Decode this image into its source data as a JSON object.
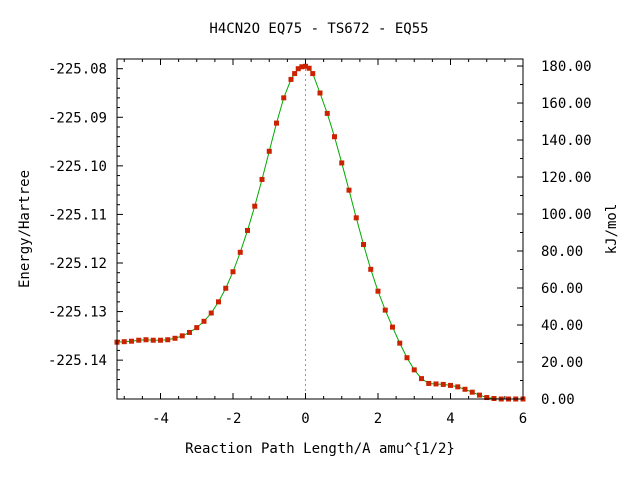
{
  "chart_data": {
    "type": "line",
    "title": "H4CN2O   EQ75 - TS672 - EQ55",
    "xlabel": "Reaction Path Length/A amu^{1/2}",
    "ylabel": "Energy/Hartree",
    "y2label": "kJ/mol",
    "xlim": [
      -5.2,
      6.0
    ],
    "ylim": [
      -225.148,
      -225.078
    ],
    "y2lim": [
      0.0,
      183.8
    ],
    "x_ticks": [
      -4,
      -2,
      0,
      2,
      4,
      6
    ],
    "x_tick_labels": [
      "-4",
      "-2",
      "0",
      "2",
      "4",
      "6"
    ],
    "y_ticks": [
      -225.08,
      -225.09,
      -225.1,
      -225.11,
      -225.12,
      -225.13,
      -225.14
    ],
    "y_tick_labels": [
      "-225.08",
      "-225.09",
      "-225.10",
      "-225.11",
      "-225.12",
      "-225.13",
      "-225.14"
    ],
    "y2_ticks": [
      180,
      160,
      140,
      120,
      100,
      80,
      60,
      40,
      20,
      0
    ],
    "y2_tick_labels": [
      "180.00",
      "160.00",
      "140.00",
      "120.00",
      "100.00",
      "80.00",
      "60.00",
      "40.00",
      "20.00",
      "0.00"
    ],
    "ts_marker_x": 0,
    "grid": false,
    "colors": {
      "line": "#00aa00",
      "marker": "#cc2200",
      "ts_line": "#999999"
    },
    "series": [
      {
        "x": [
          -5.2,
          -5.0,
          -4.8,
          -4.6,
          -4.4,
          -4.2,
          -4.0,
          -3.8,
          -3.6,
          -3.4,
          -3.2,
          -3.0,
          -2.8,
          -2.6,
          -2.4,
          -2.2,
          -2.0,
          -1.8,
          -1.6,
          -1.4,
          -1.2,
          -1.0,
          -0.8,
          -0.6,
          -0.4,
          -0.3,
          -0.2,
          -0.1,
          0.0,
          0.1,
          0.2,
          0.4,
          0.6,
          0.8,
          1.0,
          1.2,
          1.4,
          1.6,
          1.8,
          2.0,
          2.2,
          2.4,
          2.6,
          2.8,
          3.0,
          3.2,
          3.4,
          3.6,
          3.8,
          4.0,
          4.2,
          4.4,
          4.6,
          4.8,
          5.0,
          5.2,
          5.4,
          5.6,
          5.8,
          6.0
        ],
        "y": [
          -225.1363,
          -225.1362,
          -225.1361,
          -225.1359,
          -225.1358,
          -225.1359,
          -225.1359,
          -225.1358,
          -225.1355,
          -225.135,
          -225.1343,
          -225.1333,
          -225.132,
          -225.1303,
          -225.128,
          -225.1252,
          -225.1218,
          -225.1178,
          -225.1133,
          -225.1083,
          -225.1028,
          -225.097,
          -225.0912,
          -225.086,
          -225.0822,
          -225.081,
          -225.08,
          -225.0796,
          -225.0795,
          -225.0799,
          -225.081,
          -225.085,
          -225.0892,
          -225.094,
          -225.0994,
          -225.105,
          -225.1107,
          -225.1162,
          -225.1213,
          -225.1258,
          -225.1297,
          -225.1332,
          -225.1365,
          -225.1395,
          -225.142,
          -225.1438,
          -225.1448,
          -225.1449,
          -225.145,
          -225.1452,
          -225.1455,
          -225.146,
          -225.1466,
          -225.1472,
          -225.1477,
          -225.1479,
          -225.148,
          -225.148,
          -225.148,
          -225.148
        ]
      }
    ]
  }
}
